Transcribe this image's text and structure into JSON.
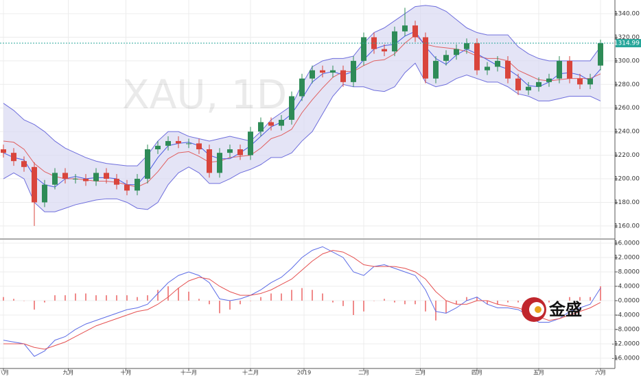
{
  "chart_data": [
    {
      "type": "candlestick",
      "watermark": "XAU, 1D",
      "ylim": [
        1149.5,
        1351.6
      ],
      "yticks": [
        {
          "value": 1160,
          "label": "1160.00"
        },
        {
          "value": 1180,
          "label": "1180.00"
        },
        {
          "value": 1200,
          "label": "1200.00"
        },
        {
          "value": 1220,
          "label": "1220.00"
        },
        {
          "value": 1240,
          "label": "1240.00"
        },
        {
          "value": 1260,
          "label": "1260.00"
        },
        {
          "value": 1280,
          "label": "1280.00"
        },
        {
          "value": 1300,
          "label": "1300.00"
        },
        {
          "value": 1320,
          "label": "1320.00"
        },
        {
          "value": 1340,
          "label": "1340.00"
        }
      ],
      "grid": true,
      "up_color": "#2e8b57",
      "down_color": "#d9453c",
      "last_price": 1314.99,
      "last_price_color": "#26a69a",
      "open": [
        1225,
        1222,
        1215,
        1210,
        1180,
        1195,
        1205,
        1200,
        1200,
        1198,
        1205,
        1200,
        1195,
        1190,
        1200,
        1225,
        1228,
        1232,
        1230,
        1230,
        1225,
        1205,
        1222,
        1225,
        1220,
        1240,
        1248,
        1245,
        1250,
        1270,
        1285,
        1292,
        1290,
        1292,
        1282,
        1300,
        1320,
        1310,
        1308,
        1325,
        1330,
        1320,
        1285,
        1300,
        1305,
        1310,
        1315,
        1292,
        1295,
        1300,
        1285,
        1275,
        1278,
        1282,
        1285,
        1300,
        1285,
        1280,
        1296
      ],
      "high": [
        1229,
        1226,
        1219,
        1214,
        1199,
        1209,
        1209,
        1204,
        1204,
        1209,
        1209,
        1204,
        1199,
        1204,
        1229,
        1232,
        1236,
        1236,
        1234,
        1234,
        1229,
        1226,
        1229,
        1229,
        1244,
        1252,
        1252,
        1254,
        1274,
        1289,
        1296,
        1296,
        1296,
        1296,
        1304,
        1324,
        1324,
        1314,
        1329,
        1345,
        1334,
        1324,
        1304,
        1309,
        1314,
        1319,
        1319,
        1299,
        1304,
        1304,
        1289,
        1282,
        1286,
        1289,
        1304,
        1304,
        1289,
        1289,
        1318
      ],
      "low": [
        1218,
        1211,
        1206,
        1160,
        1176,
        1191,
        1196,
        1196,
        1194,
        1194,
        1196,
        1191,
        1186,
        1186,
        1196,
        1221,
        1224,
        1226,
        1226,
        1221,
        1201,
        1201,
        1218,
        1216,
        1216,
        1236,
        1241,
        1241,
        1246,
        1266,
        1281,
        1286,
        1286,
        1278,
        1278,
        1296,
        1306,
        1304,
        1304,
        1321,
        1316,
        1281,
        1281,
        1296,
        1301,
        1306,
        1288,
        1288,
        1291,
        1281,
        1271,
        1271,
        1274,
        1278,
        1281,
        1281,
        1276,
        1276,
        1292
      ],
      "close": [
        1222,
        1215,
        1210,
        1180,
        1195,
        1205,
        1200,
        1200,
        1198,
        1205,
        1200,
        1195,
        1190,
        1200,
        1225,
        1228,
        1232,
        1230,
        1230,
        1225,
        1205,
        1222,
        1225,
        1220,
        1240,
        1248,
        1245,
        1250,
        1270,
        1285,
        1292,
        1290,
        1292,
        1282,
        1300,
        1320,
        1310,
        1308,
        1325,
        1330,
        1320,
        1285,
        1300,
        1305,
        1310,
        1315,
        1292,
        1295,
        1300,
        1285,
        1275,
        1278,
        1282,
        1285,
        1300,
        1285,
        1280,
        1285,
        1314.99
      ],
      "band_fill": "#d8d8f2",
      "band_upper": {
        "color": "#6d6ddc",
        "values": [
          1264,
          1258,
          1250,
          1246,
          1240,
          1232,
          1226,
          1222,
          1218,
          1215,
          1213,
          1212,
          1211,
          1211,
          1220,
          1232,
          1240,
          1240,
          1236,
          1234,
          1232,
          1234,
          1236,
          1234,
          1232,
          1240,
          1250,
          1256,
          1262,
          1280,
          1295,
          1300,
          1302,
          1302,
          1304,
          1315,
          1324,
          1328,
          1334,
          1340,
          1346,
          1347,
          1346,
          1342,
          1335,
          1328,
          1324,
          1322,
          1322,
          1322,
          1312,
          1306,
          1302,
          1300,
          1300,
          1300,
          1300,
          1300,
          1312
        ]
      },
      "band_lower": {
        "color": "#6d6ddc",
        "values": [
          1200,
          1205,
          1200,
          1180,
          1172,
          1172,
          1175,
          1178,
          1180,
          1182,
          1183,
          1183,
          1180,
          1175,
          1174,
          1180,
          1195,
          1205,
          1210,
          1205,
          1196,
          1196,
          1200,
          1205,
          1208,
          1212,
          1218,
          1218,
          1222,
          1232,
          1240,
          1255,
          1270,
          1280,
          1278,
          1278,
          1275,
          1274,
          1278,
          1290,
          1298,
          1282,
          1278,
          1280,
          1285,
          1288,
          1285,
          1282,
          1282,
          1278,
          1272,
          1270,
          1266,
          1266,
          1268,
          1270,
          1270,
          1270,
          1266
        ]
      },
      "lines": [
        {
          "color": "#e06060",
          "values": [
            1232,
            1231,
            1225,
            1213,
            1206,
            1202,
            1200,
            1200,
            1199,
            1198,
            1198,
            1197,
            1195,
            1193,
            1197,
            1206,
            1217,
            1222,
            1223,
            1219,
            1214,
            1215,
            1218,
            1219,
            1220,
            1226,
            1234,
            1237,
            1242,
            1256,
            1267,
            1277,
            1286,
            1291,
            1291,
            1296,
            1300,
            1301,
            1306,
            1315,
            1322,
            1314,
            1312,
            1311,
            1310,
            1308,
            1304,
            1302,
            1302,
            1300,
            1292,
            1288,
            1284,
            1283,
            1284,
            1285,
            1285,
            1285,
            1289
          ]
        },
        {
          "color": "#4a5be0",
          "values": [
            1222,
            1218,
            1216,
            1202,
            1195,
            1193,
            1200,
            1202,
            1200,
            1201,
            1201,
            1200,
            1195,
            1195,
            1205,
            1218,
            1228,
            1230,
            1231,
            1228,
            1220,
            1217,
            1217,
            1222,
            1228,
            1236,
            1244,
            1248,
            1255,
            1268,
            1282,
            1289,
            1291,
            1288,
            1291,
            1301,
            1310,
            1313,
            1314,
            1321,
            1325,
            1312,
            1302,
            1297,
            1305,
            1310,
            1306,
            1301,
            1296,
            1293,
            1287,
            1279,
            1278,
            1282,
            1289,
            1290,
            1288,
            1283,
            1293
          ]
        }
      ]
    },
    {
      "type": "macd",
      "ylim": [
        -18.86,
        16.95
      ],
      "yticks": [
        {
          "value": 16,
          "label": "16.0000"
        },
        {
          "value": 12,
          "label": "12.0000"
        },
        {
          "value": 8,
          "label": "8.0000"
        },
        {
          "value": 4,
          "label": "4.0000"
        },
        {
          "value": 0,
          "label": "0.0000"
        },
        {
          "value": -4,
          "label": "-4.0000"
        },
        {
          "value": -8,
          "label": "-8.0000"
        },
        {
          "value": -12,
          "label": "-12.0000"
        },
        {
          "value": -16,
          "label": "-16.0000"
        }
      ],
      "grid": true,
      "xticks": [
        {
          "value": 0,
          "label": "八月"
        },
        {
          "value": 6.3,
          "label": "九月"
        },
        {
          "value": 11.9,
          "label": "十月"
        },
        {
          "value": 18,
          "label": "十一月"
        },
        {
          "value": 24,
          "label": "十二月"
        },
        {
          "value": 29.2,
          "label": "2019"
        },
        {
          "value": 35,
          "label": "二月"
        },
        {
          "value": 40.5,
          "label": "三月"
        },
        {
          "value": 46,
          "label": "四月"
        },
        {
          "value": 52,
          "label": "五月"
        },
        {
          "value": 58,
          "label": "六月"
        }
      ],
      "logo_text": "金盛",
      "histogram": {
        "color": "#f08a8a",
        "values": [
          1,
          0.5,
          0,
          -2.5,
          -0.5,
          1.5,
          1.5,
          2,
          2,
          1.5,
          1.5,
          1.5,
          1.5,
          1,
          1.5,
          3,
          4,
          3.5,
          2.5,
          0.5,
          -1,
          -3.5,
          -2.5,
          -1,
          0,
          1,
          2,
          2,
          3,
          3.5,
          3,
          2,
          -0.5,
          -1.5,
          -4,
          -3,
          0,
          0.5,
          -0.5,
          -1,
          -1,
          -3,
          -5.5,
          -3.5,
          -1,
          1,
          1,
          -1,
          -1,
          -0.5,
          -0.5,
          -1,
          -1.5,
          -0.5,
          0,
          1,
          1,
          1,
          4
        ]
      },
      "series": [
        {
          "color": "#5b6be6",
          "values": [
            -11,
            -11.5,
            -12,
            -15.5,
            -14,
            -11,
            -10,
            -8,
            -6.5,
            -5.5,
            -4.5,
            -3.5,
            -2.5,
            -2,
            -1,
            2,
            5,
            7,
            8,
            7,
            5,
            0.5,
            0,
            0.5,
            1.5,
            3,
            5,
            6.5,
            9,
            12,
            14,
            15,
            13.5,
            12,
            8,
            7,
            9.5,
            10,
            9,
            8,
            7,
            3,
            -3,
            -3.5,
            -2,
            0,
            1,
            -1,
            -2,
            -2,
            -2.5,
            -4,
            -6,
            -6,
            -5,
            -3,
            -2,
            -1,
            3.5
          ]
        },
        {
          "color": "#e55050",
          "values": [
            -12,
            -12,
            -12,
            -13,
            -13.5,
            -12.5,
            -11.5,
            -10,
            -8.5,
            -7,
            -6,
            -5,
            -4,
            -3,
            -2.5,
            -1,
            1,
            3.5,
            5.5,
            6.5,
            6,
            4,
            2.5,
            1.5,
            1.5,
            2,
            3,
            4.5,
            6,
            8.5,
            11,
            13,
            14,
            13.5,
            12,
            10,
            9.5,
            9.5,
            9.5,
            9,
            8,
            6,
            2.5,
            0,
            -1,
            -1,
            0,
            0,
            -1,
            -1.5,
            -2,
            -3,
            -4.5,
            -5.5,
            -5,
            -4,
            -3,
            -2,
            -0.5
          ]
        }
      ]
    }
  ]
}
